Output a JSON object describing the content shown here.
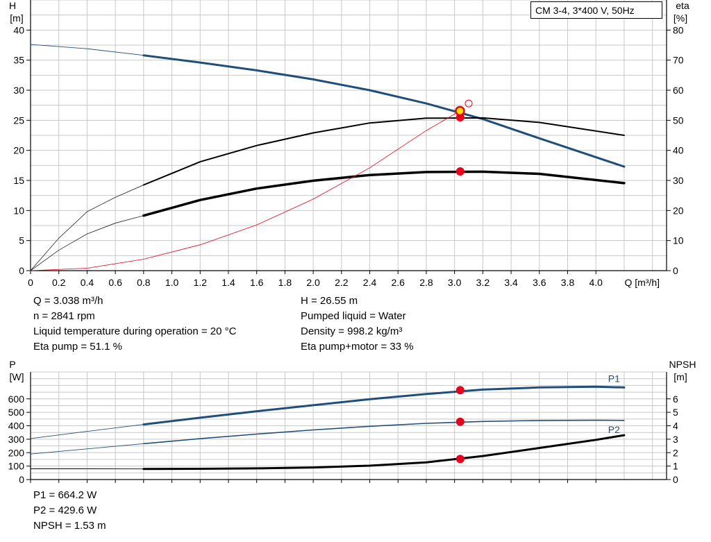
{
  "title": "CM 3-4, 3*400 V, 50Hz",
  "readout_top": {
    "left": [
      "Q = 3.038 m³/h",
      "n = 2841 rpm",
      "Liquid temperature during operation = 20 °C",
      "Eta pump = 51.1 %"
    ],
    "right": [
      "H = 26.55 m",
      "Pumped liquid = Water",
      "Density = 998.2 kg/m³",
      "Eta pump+motor = 33 %"
    ]
  },
  "readout_bottom": [
    "P1 = 664.2 W",
    "P2 = 429.6 W",
    "NPSH = 1.53 m"
  ],
  "colors": {
    "blue": "#1f4e79",
    "black": "#000000",
    "red": "#e8001c",
    "grid": "#c8c8c8"
  },
  "chart_data": [
    {
      "type": "line",
      "xlabel": "Q [m³/h]",
      "ylabel_left": "H",
      "ylabel_left_unit": "[m]",
      "ylabel_right": "eta",
      "ylabel_right_unit": "[%]",
      "xlim": [
        0,
        4.5
      ],
      "ylim_left": [
        0,
        45
      ],
      "ylim_right": [
        0,
        90
      ],
      "x_ticks": [
        "0",
        "0.2",
        "0.4",
        "0.6",
        "0.8",
        "1.0",
        "1.2",
        "1.4",
        "1.6",
        "1.8",
        "2.0",
        "2.2",
        "2.4",
        "2.6",
        "2.8",
        "3.0",
        "3.2",
        "3.4",
        "3.6",
        "3.8",
        "4.0"
      ],
      "x_tick_values": [
        0,
        0.2,
        0.4,
        0.6,
        0.8,
        1.0,
        1.2,
        1.4,
        1.6,
        1.8,
        2.0,
        2.2,
        2.4,
        2.6,
        2.8,
        3.0,
        3.2,
        3.4,
        3.6,
        3.8,
        4.0
      ],
      "y_ticks_left": [
        "0",
        "5",
        "10",
        "15",
        "20",
        "25",
        "30",
        "35",
        "40"
      ],
      "y_tick_values_left": [
        0,
        5,
        10,
        15,
        20,
        25,
        30,
        35,
        40
      ],
      "y_ticks_right": [
        "0",
        "10",
        "20",
        "30",
        "40",
        "50",
        "60",
        "70",
        "80"
      ],
      "y_tick_values_right": [
        0,
        10,
        20,
        30,
        40,
        50,
        60,
        70,
        80
      ],
      "grid": true,
      "series": [
        {
          "axis": "left",
          "color": "#1f4e79",
          "width": 3,
          "thin_width": 0.9,
          "x": [
            0,
            0.4,
            0.8,
            1.2,
            1.6,
            2.0,
            2.4,
            2.8,
            3.2,
            3.6,
            4.2
          ],
          "y": [
            37.6,
            36.9,
            35.8,
            34.6,
            33.3,
            31.8,
            30.0,
            27.8,
            25.2,
            22.0,
            17.3
          ],
          "thin_until": 0.8
        },
        {
          "axis": "right",
          "color": "#000000",
          "width": 2,
          "thin_width": 0.7,
          "x": [
            0,
            0.2,
            0.4,
            0.6,
            0.8,
            1.2,
            1.6,
            2.0,
            2.4,
            2.8,
            3.2,
            3.6,
            4.2
          ],
          "y": [
            0,
            10.8,
            19.6,
            24.4,
            28.5,
            36.2,
            41.6,
            45.8,
            49.1,
            50.7,
            50.8,
            49.3,
            45.0
          ],
          "thin_until": 0.8
        },
        {
          "axis": "right",
          "color": "#000000",
          "width": 3.5,
          "thin_width": 0.7,
          "x": [
            0,
            0.2,
            0.4,
            0.6,
            0.8,
            1.2,
            1.6,
            2.0,
            2.4,
            2.8,
            3.2,
            3.6,
            4.2
          ],
          "y": [
            0,
            6.8,
            12.2,
            15.8,
            18.3,
            23.5,
            27.3,
            29.9,
            31.8,
            32.8,
            32.9,
            32.2,
            29.1
          ],
          "thin_until": 0.8
        },
        {
          "axis": "left",
          "color": "#e8001c",
          "width": 0.8,
          "thin_width": 0.8,
          "x": [
            0,
            0.4,
            0.8,
            1.2,
            1.6,
            2.0,
            2.4,
            2.8,
            3.038
          ],
          "y": [
            0,
            0.4,
            1.9,
            4.3,
            7.6,
            11.9,
            17.1,
            23.3,
            26.55
          ],
          "thin_until": 0
        }
      ],
      "markers": [
        {
          "axis": "left",
          "x": 3.04,
          "y": 25.5,
          "color": "#e8001c"
        },
        {
          "axis": "left",
          "x": 3.04,
          "y": 16.5,
          "color": "#e8001c"
        },
        {
          "axis": "left",
          "x": 3.038,
          "y": 26.55,
          "color": "#e8001c",
          "fill": "#ffe000"
        },
        {
          "axis": "left",
          "x": 3.1,
          "y": 27.8,
          "color": "#e8001c",
          "fill": "none"
        }
      ]
    },
    {
      "type": "line",
      "ylabel_left": "P",
      "ylabel_left_unit": "[W]",
      "ylabel_right": "NPSH",
      "ylabel_right_unit": "[m]",
      "xlim": [
        0,
        4.5
      ],
      "ylim_left": [
        0,
        800
      ],
      "ylim_right": [
        0,
        8
      ],
      "x_tick_values": [
        0,
        0.2,
        0.4,
        0.6,
        0.8,
        1.0,
        1.2,
        1.4,
        1.6,
        1.8,
        2.0,
        2.2,
        2.4,
        2.6,
        2.8,
        3.0,
        3.2,
        3.4,
        3.6,
        3.8,
        4.0
      ],
      "y_ticks_left": [
        "0",
        "100",
        "200",
        "300",
        "400",
        "500",
        "600"
      ],
      "y_tick_values_left": [
        0,
        100,
        200,
        300,
        400,
        500,
        600
      ],
      "y_ticks_right": [
        "0",
        "1",
        "2",
        "3",
        "4",
        "5",
        "6"
      ],
      "y_tick_values_right": [
        0,
        1,
        2,
        3,
        4,
        5,
        6
      ],
      "grid": true,
      "series": [
        {
          "name": "P1",
          "axis": "left",
          "color": "#1f4e79",
          "width": 3,
          "thin_width": 0.9,
          "x": [
            0,
            0.4,
            0.8,
            1.2,
            1.6,
            2.0,
            2.4,
            2.8,
            3.2,
            3.6,
            4.0,
            4.2
          ],
          "y": [
            305,
            358,
            410,
            460,
            508,
            553,
            597,
            636,
            669,
            685,
            690,
            685
          ],
          "thin_until": 0.8
        },
        {
          "name": "P2",
          "axis": "left",
          "color": "#1f4e79",
          "width": 1.6,
          "thin_width": 0.9,
          "x": [
            0,
            0.4,
            0.8,
            1.2,
            1.6,
            2.0,
            2.4,
            2.8,
            3.2,
            3.6,
            4.0,
            4.2
          ],
          "y": [
            190,
            228,
            267,
            304,
            338,
            369,
            396,
            418,
            432,
            439,
            441,
            440
          ],
          "thin_until": 0.8
        },
        {
          "axis": "right",
          "color": "#000000",
          "width": 3,
          "thin_width": 0.9,
          "x": [
            0,
            0.4,
            0.8,
            1.2,
            1.6,
            2.0,
            2.4,
            2.8,
            3.2,
            3.6,
            4.0,
            4.2
          ],
          "y": [
            0.8,
            0.8,
            0.79,
            0.8,
            0.83,
            0.9,
            1.03,
            1.28,
            1.75,
            2.35,
            2.95,
            3.3
          ],
          "thin_until": 0.8
        }
      ],
      "markers": [
        {
          "axis": "left",
          "x": 3.04,
          "y": 664.2,
          "color": "#e8001c"
        },
        {
          "axis": "left",
          "x": 3.04,
          "y": 429.6,
          "color": "#e8001c"
        },
        {
          "axis": "right",
          "x": 3.04,
          "y": 1.53,
          "color": "#e8001c"
        }
      ]
    }
  ]
}
